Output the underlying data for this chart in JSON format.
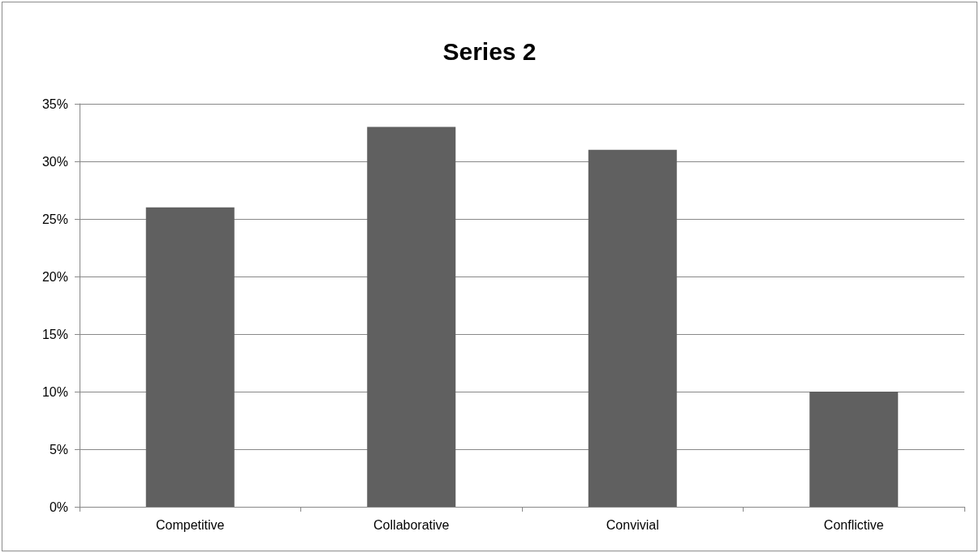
{
  "chart_data": {
    "type": "bar",
    "title": "Series 2",
    "categories": [
      "Competitive",
      "Collaborative",
      "Convivial",
      "Conflictive"
    ],
    "values": [
      26,
      33,
      31,
      10
    ],
    "color": "#606060",
    "ylim": [
      0,
      35
    ],
    "yticks": [
      {
        "value": 0,
        "label": "0%"
      },
      {
        "value": 5,
        "label": "5%"
      },
      {
        "value": 10,
        "label": "10%"
      },
      {
        "value": 15,
        "label": "15%"
      },
      {
        "value": 20,
        "label": "20%"
      },
      {
        "value": 25,
        "label": "25%"
      },
      {
        "value": 30,
        "label": "30%"
      },
      {
        "value": 35,
        "label": "35%"
      }
    ],
    "grid": "y"
  }
}
